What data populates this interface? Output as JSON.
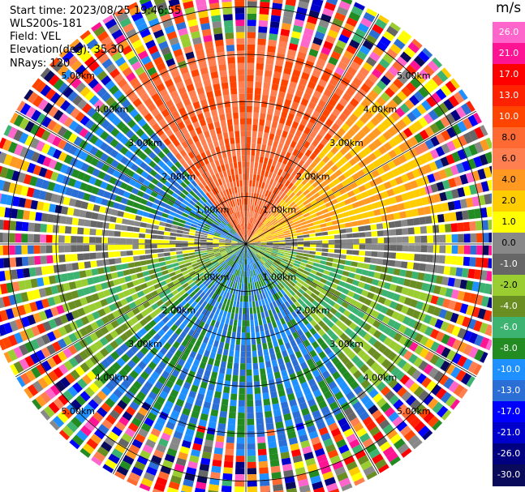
{
  "header": {
    "start_time": "Start time: 2023/08/25 19:46:55",
    "instrument": "WLS200s-181",
    "field": "Field: VEL",
    "elevation": "Elevation(deg): 35.30",
    "nrays": "NRays: 120"
  },
  "ppi": {
    "range_rings": [
      {
        "km": 1,
        "label": "1.00km"
      },
      {
        "km": 2,
        "label": "2.00km"
      },
      {
        "km": 3,
        "label": "3.00km"
      },
      {
        "km": 4,
        "label": "4.00km"
      },
      {
        "km": 5,
        "label": "5.00km"
      }
    ],
    "nrays": 120,
    "max_range_km": 5.6
  },
  "colorbar": {
    "unit": "m/s",
    "boundaries": [
      26.0,
      21.0,
      17.0,
      13.0,
      10.0,
      8.0,
      6.0,
      4.0,
      2.0,
      1.0,
      0.0,
      -1.0,
      -2.0,
      -4.0,
      -6.0,
      -8.0,
      -10.0,
      -13.0,
      -17.0,
      -21.0,
      -26.0,
      -30.0
    ],
    "labels": [
      "26.0",
      "21.0",
      "17.0",
      "13.0",
      "10.0",
      "8.0",
      "6.0",
      "4.0",
      "2.0",
      "1.0",
      "0.0",
      "-1.0",
      "-2.0",
      "-4.0",
      "-6.0",
      "-8.0",
      "-10.0",
      "-13.0",
      "-17.0",
      "-21.0",
      "-26.0",
      "-30.0"
    ],
    "colors": [
      "#ff66cc",
      "#ff1493",
      "#ff0000",
      "#ff2200",
      "#ff4400",
      "#ff6a33",
      "#ff7f50",
      "#ff9922",
      "#ffcc00",
      "#ffff00",
      "#888888",
      "#666666",
      "#9acd32",
      "#6b8e23",
      "#3cb371",
      "#228b22",
      "#1e90ff",
      "#2b6fd6",
      "#0000ff",
      "#0000cd",
      "#000080",
      "#0a0a5a"
    ]
  }
}
